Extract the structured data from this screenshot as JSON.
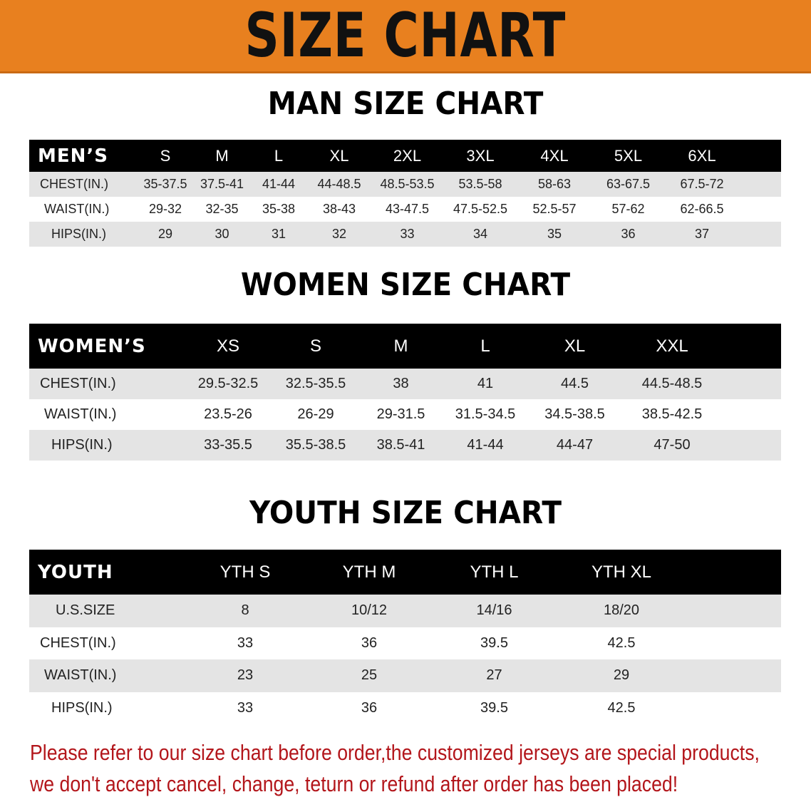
{
  "banner_title": "SIZE CHART",
  "men": {
    "title": "MAN SIZE CHART",
    "header": [
      "MEN’S",
      "S",
      "M",
      "L",
      "XL",
      "2XL",
      "3XL",
      "4XL",
      "5XL",
      "6XL"
    ],
    "rows": [
      {
        "label": "CHEST(IN.)",
        "values": [
          "35-37.5",
          "37.5-41",
          "41-44",
          "44-48.5",
          "48.5-53.5",
          "53.5-58",
          "58-63",
          "63-67.5",
          "67.5-72"
        ]
      },
      {
        "label": "WAIST(IN.)",
        "values": [
          "29-32",
          "32-35",
          "35-38",
          "38-43",
          "43-47.5",
          "47.5-52.5",
          "52.5-57",
          "57-62",
          "62-66.5"
        ]
      },
      {
        "label": "HIPS(IN.)",
        "values": [
          "29",
          "30",
          "31",
          "32",
          "33",
          "34",
          "35",
          "36",
          "37"
        ]
      }
    ]
  },
  "women": {
    "title": "WOMEN SIZE CHART",
    "header": [
      "WOMEN’S",
      "XS",
      "S",
      "M",
      "L",
      "XL",
      "XXL"
    ],
    "rows": [
      {
        "label": "CHEST(IN.)",
        "values": [
          "29.5-32.5",
          "32.5-35.5",
          "38",
          "41",
          "44.5",
          "44.5-48.5"
        ]
      },
      {
        "label": "WAIST(IN.)",
        "values": [
          "23.5-26",
          "26-29",
          "29-31.5",
          "31.5-34.5",
          "34.5-38.5",
          "38.5-42.5"
        ]
      },
      {
        "label": "HIPS(IN.)",
        "values": [
          "33-35.5",
          "35.5-38.5",
          "38.5-41",
          "41-44",
          "44-47",
          "47-50"
        ]
      }
    ]
  },
  "youth": {
    "title": "YOUTH SIZE CHART",
    "header": [
      "YOUTH",
      "YTH S",
      "YTH M",
      "YTH L",
      "YTH XL"
    ],
    "rows": [
      {
        "label": "U.S.SIZE",
        "values": [
          "8",
          "10/12",
          "14/16",
          "18/20"
        ]
      },
      {
        "label": "CHEST(IN.)",
        "values": [
          "33",
          "36",
          "39.5",
          "42.5"
        ]
      },
      {
        "label": "WAIST(IN.)",
        "values": [
          "23",
          "25",
          "27",
          "29"
        ]
      },
      {
        "label": "HIPS(IN.)",
        "values": [
          "33",
          "36",
          "39.5",
          "42.5"
        ]
      }
    ]
  },
  "notice": [
    "Please refer to our size chart before order,the customized jerseys are special products,",
    "we don't accept cancel, change, teturn or refund after order has been placed!"
  ],
  "colors": {
    "banner": "#e8801f",
    "header_row": "#000000",
    "stripe": "#e4e4e4",
    "notice": "#b3161b"
  }
}
